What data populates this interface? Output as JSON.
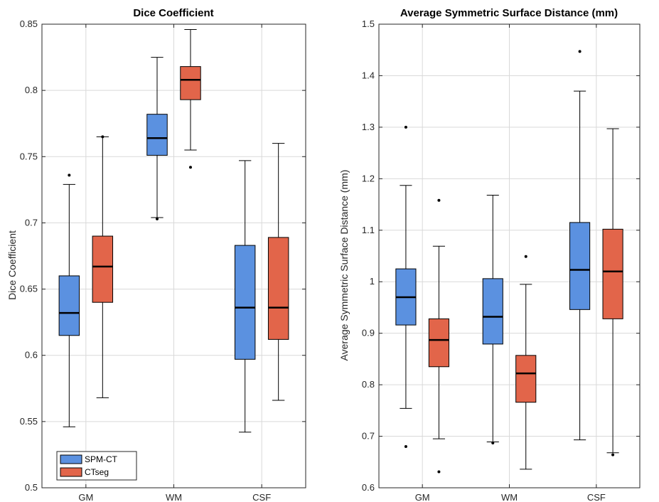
{
  "colors": {
    "spm": "#5b91e0",
    "ctseg": "#e2654a",
    "grid": "#d9d9d9",
    "axis": "#262626"
  },
  "chart_data": [
    {
      "type": "box",
      "title": "Dice Coefficient",
      "xlabel": "",
      "ylabel": "Dice Coefficient",
      "categories": [
        "GM",
        "WM",
        "CSF"
      ],
      "ylim": [
        0.5,
        0.85
      ],
      "yticks": [
        0.5,
        0.55,
        0.6,
        0.65,
        0.7,
        0.75,
        0.8,
        0.85
      ],
      "ytick_labels": [
        "0.5",
        "0.55",
        "0.6",
        "0.65",
        "0.7",
        "0.75",
        "0.8",
        "0.85"
      ],
      "grid": true,
      "legend": "bottom-left",
      "series": [
        {
          "name": "SPM-CT",
          "boxes": [
            {
              "whisker_low": 0.546,
              "q1": 0.615,
              "median": 0.632,
              "q3": 0.66,
              "whisker_high": 0.729,
              "outliers": [
                0.736
              ]
            },
            {
              "whisker_low": 0.704,
              "q1": 0.751,
              "median": 0.764,
              "q3": 0.782,
              "whisker_high": 0.825,
              "outliers": [
                0.703
              ]
            },
            {
              "whisker_low": 0.542,
              "q1": 0.597,
              "median": 0.636,
              "q3": 0.683,
              "whisker_high": 0.747,
              "outliers": []
            }
          ]
        },
        {
          "name": "CTseg",
          "boxes": [
            {
              "whisker_low": 0.568,
              "q1": 0.64,
              "median": 0.667,
              "q3": 0.69,
              "whisker_high": 0.765,
              "outliers": [
                0.765
              ]
            },
            {
              "whisker_low": 0.755,
              "q1": 0.793,
              "median": 0.808,
              "q3": 0.818,
              "whisker_high": 0.846,
              "outliers": [
                0.742
              ]
            },
            {
              "whisker_low": 0.566,
              "q1": 0.612,
              "median": 0.636,
              "q3": 0.689,
              "whisker_high": 0.76,
              "outliers": []
            }
          ]
        }
      ]
    },
    {
      "type": "box",
      "title": "Average Symmetric Surface Distance (mm)",
      "xlabel": "",
      "ylabel": "Average Symmetric Surface Distance (mm)",
      "categories": [
        "GM",
        "WM",
        "CSF"
      ],
      "ylim": [
        0.6,
        1.5
      ],
      "yticks": [
        0.6,
        0.7,
        0.8,
        0.9,
        1.0,
        1.1,
        1.2,
        1.3,
        1.4,
        1.5
      ],
      "ytick_labels": [
        "0.6",
        "0.7",
        "0.8",
        "0.9",
        "1",
        "1.1",
        "1.2",
        "1.3",
        "1.4",
        "1.5"
      ],
      "grid": true,
      "series": [
        {
          "name": "SPM-CT",
          "boxes": [
            {
              "whisker_low": 0.754,
              "q1": 0.916,
              "median": 0.97,
              "q3": 1.025,
              "whisker_high": 1.187,
              "outliers": [
                1.3,
                0.68
              ]
            },
            {
              "whisker_low": 0.689,
              "q1": 0.879,
              "median": 0.932,
              "q3": 1.006,
              "whisker_high": 1.168,
              "outliers": [
                0.687
              ]
            },
            {
              "whisker_low": 0.693,
              "q1": 0.946,
              "median": 1.023,
              "q3": 1.115,
              "whisker_high": 1.37,
              "outliers": [
                1.447
              ]
            }
          ]
        },
        {
          "name": "CTseg",
          "boxes": [
            {
              "whisker_low": 0.695,
              "q1": 0.835,
              "median": 0.887,
              "q3": 0.928,
              "whisker_high": 1.069,
              "outliers": [
                1.158,
                0.631
              ]
            },
            {
              "whisker_low": 0.636,
              "q1": 0.766,
              "median": 0.822,
              "q3": 0.857,
              "whisker_high": 0.995,
              "outliers": [
                1.049
              ]
            },
            {
              "whisker_low": 0.668,
              "q1": 0.928,
              "median": 1.02,
              "q3": 1.102,
              "whisker_high": 1.297,
              "outliers": [
                0.664
              ]
            }
          ]
        }
      ]
    }
  ]
}
